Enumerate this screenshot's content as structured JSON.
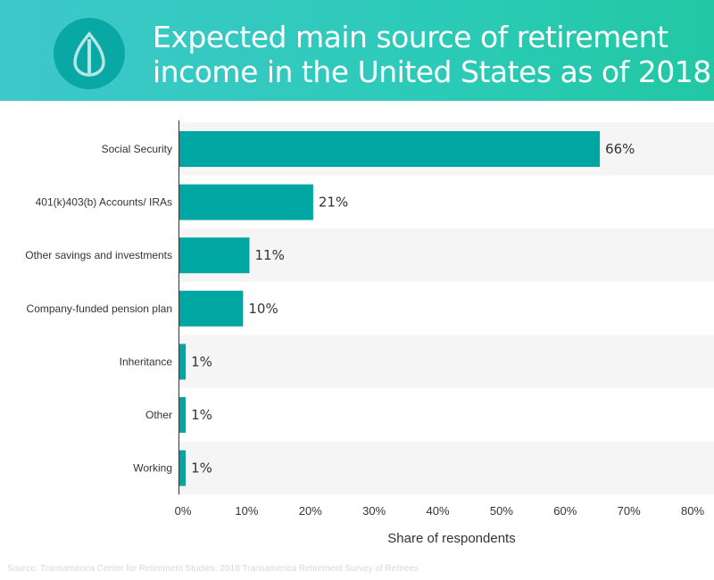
{
  "header": {
    "title_line1": "Expected main source of retirement",
    "title_line2": "income in the United States as of 2018",
    "logo_icon": "leaf-drop-icon"
  },
  "colors": {
    "bar": "#00a6a2",
    "band": "#f5f5f5",
    "header_start": "#3ec8cb",
    "header_end": "#22c8a4"
  },
  "chart_data": {
    "type": "bar",
    "orientation": "horizontal",
    "categories": [
      "Social Security",
      "401(k)403(b) Accounts/ IRAs",
      "Other savings and investments",
      "Company-funded pension plan",
      "Inheritance",
      "Other",
      "Working"
    ],
    "values": [
      66,
      21,
      11,
      10,
      1,
      1,
      1
    ],
    "data_labels": [
      "66%",
      "21%",
      "11%",
      "10%",
      "1%",
      "1%",
      "1%"
    ],
    "xlabel": "Share of respondents",
    "ylabel": "",
    "xlim": [
      0,
      80
    ],
    "xticks": [
      "0%",
      "10%",
      "20%",
      "30%",
      "40%",
      "50%",
      "60%",
      "70%",
      "80%"
    ],
    "grid": false
  },
  "source": "Source: Transamerica Center for Retirement Studies, 2018 Transamerica Retirement Survey of Retirees"
}
